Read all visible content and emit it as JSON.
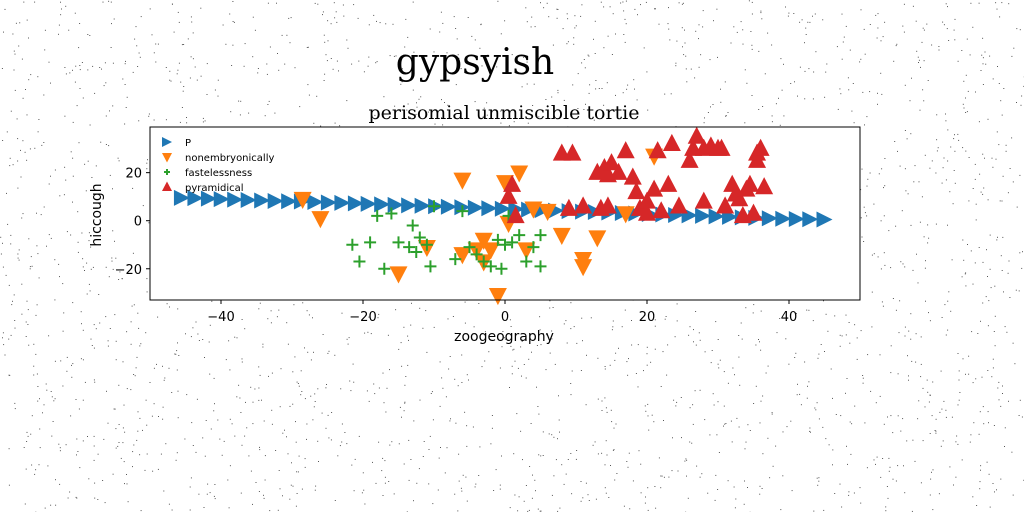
{
  "chart_data": {
    "type": "scatter",
    "suptitle": "gypsyish",
    "title": "perisomial unmiscible tortie",
    "xlabel": "zoogeography",
    "ylabel": "hiccough",
    "xlim": [
      -50,
      50
    ],
    "ylim": [
      -33,
      39
    ],
    "xticks": [
      -40,
      -20,
      0,
      20,
      40
    ],
    "yticks": [
      -20,
      0,
      20
    ],
    "legend_position": "upper-left",
    "grid": false,
    "series": [
      {
        "name": "P",
        "marker": "triangle-right",
        "color": "#1f77b4",
        "points": [
          [
            -45.5,
            9.5
          ],
          [
            -43.6,
            9.4
          ],
          [
            -41.7,
            9.2
          ],
          [
            -39.9,
            9.0
          ],
          [
            -38.0,
            8.8
          ],
          [
            -36.1,
            8.6
          ],
          [
            -34.2,
            8.4
          ],
          [
            -32.3,
            8.2
          ],
          [
            -30.4,
            8.1
          ],
          [
            -28.6,
            8.0
          ],
          [
            -26.7,
            7.8
          ],
          [
            -24.8,
            7.6
          ],
          [
            -22.9,
            7.4
          ],
          [
            -21.0,
            7.2
          ],
          [
            -19.2,
            7.0
          ],
          [
            -17.3,
            6.8
          ],
          [
            -15.4,
            6.6
          ],
          [
            -13.5,
            6.4
          ],
          [
            -11.6,
            6.2
          ],
          [
            -9.7,
            6.0
          ],
          [
            -7.9,
            5.8
          ],
          [
            -6.0,
            5.6
          ],
          [
            -4.1,
            5.4
          ],
          [
            -2.2,
            5.2
          ],
          [
            -0.3,
            5.0
          ],
          [
            1.6,
            4.8
          ],
          [
            3.4,
            4.6
          ],
          [
            5.3,
            4.4
          ],
          [
            7.2,
            4.2
          ],
          [
            9.1,
            4.0
          ],
          [
            11.0,
            3.8
          ],
          [
            12.8,
            3.6
          ],
          [
            14.7,
            3.4
          ],
          [
            16.6,
            3.2
          ],
          [
            18.5,
            3.0
          ],
          [
            20.4,
            2.8
          ],
          [
            22.3,
            2.6
          ],
          [
            24.1,
            2.4
          ],
          [
            26.0,
            2.2
          ],
          [
            27.9,
            2.0
          ],
          [
            29.8,
            1.8
          ],
          [
            31.7,
            1.6
          ],
          [
            33.5,
            1.4
          ],
          [
            35.4,
            1.2
          ],
          [
            37.3,
            1.0
          ],
          [
            39.2,
            0.8
          ],
          [
            41.1,
            0.7
          ],
          [
            43.0,
            0.6
          ],
          [
            45.0,
            0.5
          ]
        ]
      },
      {
        "name": "nonembryonically",
        "marker": "triangle-down",
        "color": "#ff7f0e",
        "points": [
          [
            -28.5,
            9
          ],
          [
            -26,
            1
          ],
          [
            -15,
            -22
          ],
          [
            -11,
            -11
          ],
          [
            -6,
            -14
          ],
          [
            -6,
            17
          ],
          [
            -4,
            -12
          ],
          [
            -3,
            -8
          ],
          [
            -3,
            -17
          ],
          [
            -2,
            -12
          ],
          [
            -1,
            -31
          ],
          [
            0,
            16
          ],
          [
            0.5,
            -1
          ],
          [
            2,
            20
          ],
          [
            3,
            -12
          ],
          [
            4,
            5
          ],
          [
            6,
            4
          ],
          [
            8,
            -6
          ],
          [
            11,
            -16
          ],
          [
            11,
            -19
          ],
          [
            13,
            -7
          ],
          [
            17,
            3
          ],
          [
            21,
            27
          ]
        ]
      },
      {
        "name": "fastelessness",
        "marker": "plus",
        "color": "#2ca02c",
        "points": [
          [
            -21.5,
            -10
          ],
          [
            -20.5,
            -17
          ],
          [
            -19,
            -9
          ],
          [
            -18,
            2
          ],
          [
            -17,
            -20
          ],
          [
            -16,
            3
          ],
          [
            -15,
            -9
          ],
          [
            -13.5,
            -11
          ],
          [
            -13,
            -2
          ],
          [
            -12.5,
            -13
          ],
          [
            -12,
            -7
          ],
          [
            -11,
            -10
          ],
          [
            -10.5,
            -19
          ],
          [
            -10,
            6
          ],
          [
            -7,
            -16
          ],
          [
            -6,
            4
          ],
          [
            -5,
            -11
          ],
          [
            -4,
            -14
          ],
          [
            -3,
            -17
          ],
          [
            -2,
            -19
          ],
          [
            -1,
            -8
          ],
          [
            -0.5,
            -20
          ],
          [
            0,
            -10
          ],
          [
            0.5,
            2
          ],
          [
            1,
            -9
          ],
          [
            2,
            -6
          ],
          [
            3,
            -17
          ],
          [
            4,
            -11
          ],
          [
            5,
            -19
          ],
          [
            5,
            -6
          ]
        ]
      },
      {
        "name": "pyramidical",
        "marker": "triangle-up",
        "color": "#d62728",
        "points": [
          [
            0.5,
            10
          ],
          [
            1,
            15
          ],
          [
            1.5,
            2
          ],
          [
            8,
            28
          ],
          [
            9,
            5
          ],
          [
            9.5,
            28
          ],
          [
            11,
            6
          ],
          [
            13,
            20
          ],
          [
            13.5,
            5
          ],
          [
            14,
            22
          ],
          [
            14.5,
            19
          ],
          [
            14.5,
            6
          ],
          [
            15,
            24
          ],
          [
            16,
            20
          ],
          [
            17,
            29
          ],
          [
            18,
            18
          ],
          [
            18.5,
            12
          ],
          [
            19,
            5
          ],
          [
            20,
            8
          ],
          [
            20,
            3
          ],
          [
            21,
            13
          ],
          [
            21.5,
            29
          ],
          [
            22,
            4
          ],
          [
            23,
            15
          ],
          [
            23.5,
            32
          ],
          [
            24.5,
            6
          ],
          [
            26,
            25
          ],
          [
            26.5,
            30
          ],
          [
            27,
            35
          ],
          [
            28,
            30
          ],
          [
            28,
            8
          ],
          [
            29,
            31
          ],
          [
            30,
            30
          ],
          [
            30.5,
            30
          ],
          [
            31,
            6
          ],
          [
            32,
            15
          ],
          [
            32.5,
            11
          ],
          [
            33,
            9
          ],
          [
            33.5,
            2
          ],
          [
            34,
            13
          ],
          [
            34.5,
            15
          ],
          [
            35,
            3
          ],
          [
            35.5,
            25
          ],
          [
            35.5,
            28
          ],
          [
            36,
            30
          ],
          [
            36.5,
            14
          ]
        ]
      }
    ]
  }
}
